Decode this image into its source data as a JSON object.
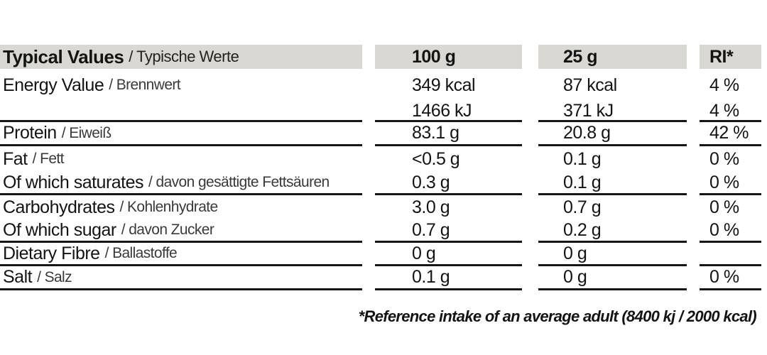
{
  "table": {
    "header": {
      "label_en": "Typical Values",
      "label_de": "/ Typische Werte",
      "col_100g": "100 g",
      "col_25g": "25 g",
      "col_ri": "RI*"
    },
    "rows": [
      {
        "label_en": "Energy Value",
        "label_de": "/ Brennwert",
        "v100": "349 kcal",
        "v25": "87 kcal",
        "ri": "4 %"
      },
      {
        "label_en": "",
        "label_de": "",
        "v100": "1466 kJ",
        "v25": "371 kJ",
        "ri": "4 %"
      },
      {
        "label_en": "Protein",
        "label_de": "/ Eiweiß",
        "v100": "83.1 g",
        "v25": "20.8 g",
        "ri": "42 %"
      },
      {
        "label_en": "Fat",
        "label_de": "/ Fett",
        "v100": "<0.5 g",
        "v25": "0.1 g",
        "ri": "0 %"
      },
      {
        "label_en": "Of which saturates",
        "label_de": "/ davon gesättigte Fettsäuren",
        "v100": "0.3 g",
        "v25": "0.1 g",
        "ri": "0 %"
      },
      {
        "label_en": "Carbohydrates",
        "label_de": "/ Kohlenhydrate",
        "v100": "3.0 g",
        "v25": "0.7 g",
        "ri": "0 %"
      },
      {
        "label_en": "Of which sugar",
        "label_de": "/ davon Zucker",
        "v100": "0.7 g",
        "v25": "0.2 g",
        "ri": "0 %"
      },
      {
        "label_en": "Dietary Fibre",
        "label_de": "/ Ballastoffe",
        "v100": "0 g",
        "v25": "0 g",
        "ri": ""
      },
      {
        "label_en": "Salt",
        "label_de": "/ Salz",
        "v100": "0.1 g",
        "v25": "0 g",
        "ri": "0 %"
      }
    ],
    "footnote": "*Reference intake of an average adult (8400 kj / 2000 kcal)"
  },
  "colors": {
    "header_bg": "#d9d8d3",
    "text": "#141414",
    "secondary_text": "#3a3a3a",
    "line": "#161616",
    "background": "#ffffff"
  },
  "chart_data": {
    "type": "table",
    "title": "Typical Values / Typische Werte",
    "columns": [
      "Typical Values / Typische Werte",
      "100 g",
      "25 g",
      "RI*"
    ],
    "rows": [
      [
        "Energy Value / Brennwert",
        "349 kcal",
        "87 kcal",
        "4 %"
      ],
      [
        "",
        "1466 kJ",
        "371 kJ",
        "4 %"
      ],
      [
        "Protein / Eiweiß",
        "83.1 g",
        "20.8 g",
        "42 %"
      ],
      [
        "Fat / Fett",
        "<0.5 g",
        "0.1 g",
        "0 %"
      ],
      [
        "Of which saturates / davon gesättigte Fettsäuren",
        "0.3 g",
        "0.1 g",
        "0 %"
      ],
      [
        "Carbohydrates / Kohlenhydrate",
        "3.0 g",
        "0.7 g",
        "0 %"
      ],
      [
        "Of which sugar / davon Zucker",
        "0.7 g",
        "0.2 g",
        "0 %"
      ],
      [
        "Dietary Fibre / Ballastoffe",
        "0 g",
        "0 g",
        ""
      ],
      [
        "Salt / Salz",
        "0.1 g",
        "0 g",
        "0 %"
      ]
    ],
    "annotations": [
      "*Reference intake of an average adult (8400 kj / 2000 kcal)"
    ],
    "legend_position": "none",
    "grid": "horizontal-rules-per-column"
  }
}
